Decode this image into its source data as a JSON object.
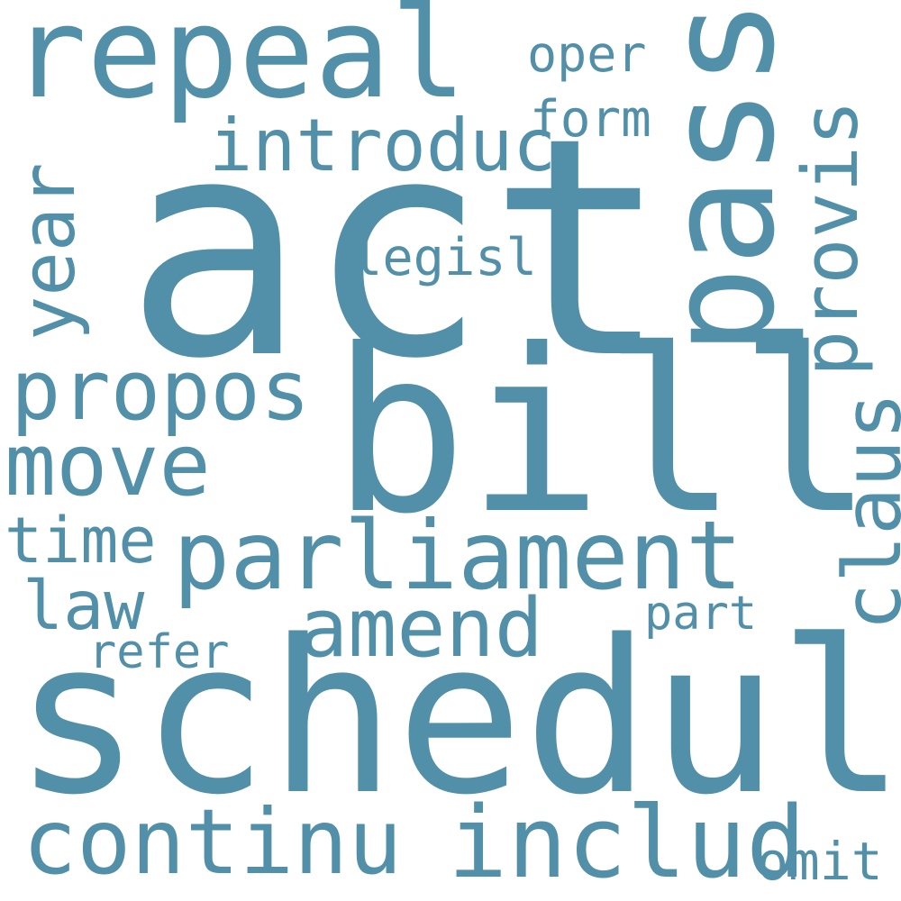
{
  "cloud": {
    "color": "#5190a8",
    "background": "#ffffff",
    "words": {
      "act": "act",
      "bill": "bill",
      "schedul": "schedul",
      "repeal": "repeal",
      "pass": "pass",
      "parliament": "parliament",
      "propos": "propos",
      "move": "move",
      "continu": "continu",
      "includ": "includ",
      "amend": "amend",
      "introduc": "introduc",
      "provis": "provis",
      "claus": "claus",
      "year": "year",
      "time": "time",
      "law": "law",
      "legisl": "legisl",
      "form": "form",
      "oper": "oper",
      "refer": "refer",
      "part": "part",
      "omit": "omit"
    }
  }
}
